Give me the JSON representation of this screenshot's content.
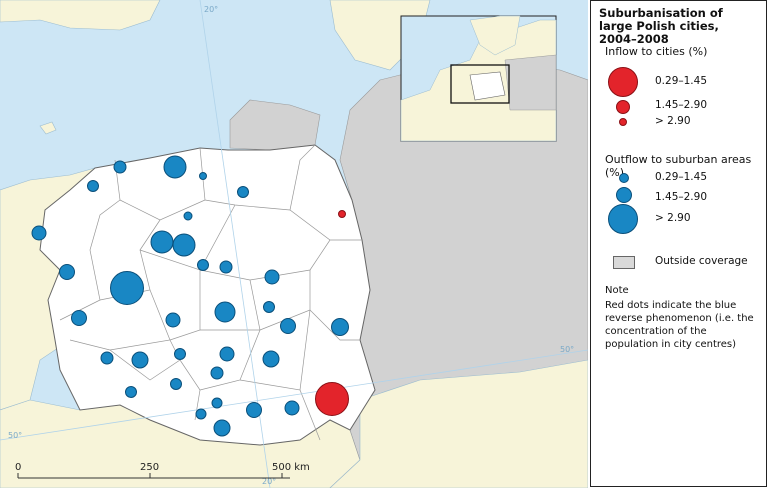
{
  "map": {
    "graticule_labels": [
      "20°",
      "50°",
      "50°",
      "20°"
    ],
    "scale_bar": {
      "ticks": [
        "0",
        "250",
        "500 km"
      ]
    },
    "colors": {
      "sea": "#cde6f5",
      "land": "#f7f4d9",
      "outside": "#d2d2d2",
      "poland": "#ffffff",
      "inflow": "#e3242b",
      "outflow": "#1987c4"
    }
  },
  "legend": {
    "title": "Suburbanisation of large Polish cities, 2004–2008",
    "inflow": {
      "heading": "Inflow to cities (%)",
      "classes": [
        "0.29–1.45",
        "1.45–2.90",
        "> 2.90"
      ]
    },
    "outflow": {
      "heading": "Outflow to suburban areas (%)",
      "classes": [
        "0.29–1.45",
        "1.45–2.90",
        "> 2.90"
      ]
    },
    "outside_coverage": "Outside coverage",
    "note": {
      "heading": "Note",
      "text": "Red dots indicate the blue reverse phenomenon (i.e. the concentration of the population in city centres)"
    }
  }
}
